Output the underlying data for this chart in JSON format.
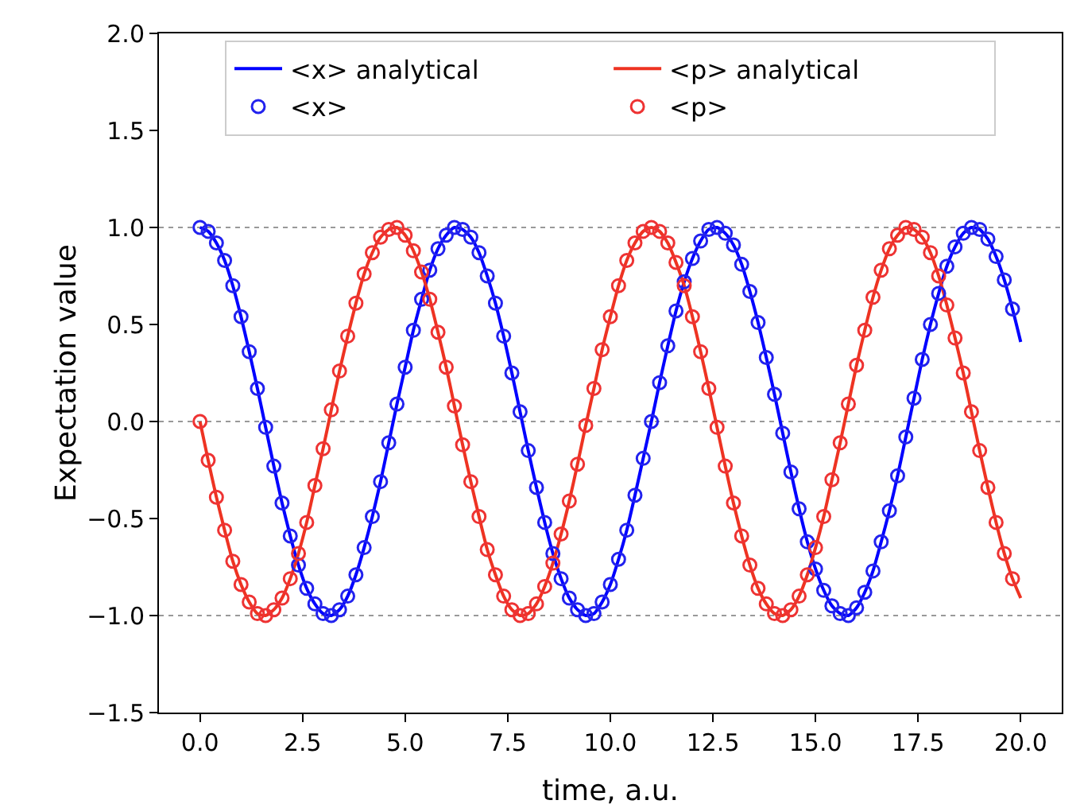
{
  "chart_data": {
    "type": "line",
    "xlabel": "time, a.u.",
    "ylabel": "Expectation value",
    "x": [
      0,
      0.2,
      0.4,
      0.6,
      0.8,
      1.0,
      1.2,
      1.4,
      1.6,
      1.8,
      2.0,
      2.2,
      2.4,
      2.6,
      2.8,
      3.0,
      3.2,
      3.4,
      3.6,
      3.8,
      4.0,
      4.2,
      4.4,
      4.6,
      4.8,
      5.0,
      5.2,
      5.4,
      5.6,
      5.8,
      6.0,
      6.2,
      6.4,
      6.6,
      6.8,
      7.0,
      7.2,
      7.4,
      7.6,
      7.8,
      8.0,
      8.2,
      8.4,
      8.6,
      8.8,
      9.0,
      9.2,
      9.4,
      9.6,
      9.8,
      10.0,
      10.2,
      10.4,
      10.6,
      10.8,
      11.0,
      11.2,
      11.4,
      11.6,
      11.8,
      12.0,
      12.2,
      12.4,
      12.6,
      12.8,
      13.0,
      13.2,
      13.4,
      13.6,
      13.8,
      14.0,
      14.2,
      14.4,
      14.6,
      14.8,
      15.0,
      15.2,
      15.4,
      15.6,
      15.8,
      16.0,
      16.2,
      16.4,
      16.6,
      16.8,
      17.0,
      17.2,
      17.4,
      17.6,
      17.8,
      18.0,
      18.2,
      18.4,
      18.6,
      18.8,
      19.0,
      19.2,
      19.4,
      19.6,
      19.8,
      20.0
    ],
    "series": [
      {
        "name": "<x> analytical",
        "color": "#0000ff",
        "marker": "none",
        "values": [
          1.0,
          0.98,
          0.92,
          0.83,
          0.7,
          0.54,
          0.36,
          0.17,
          -0.03,
          -0.23,
          -0.42,
          -0.59,
          -0.74,
          -0.86,
          -0.94,
          -0.99,
          -1.0,
          -0.97,
          -0.9,
          -0.79,
          -0.65,
          -0.49,
          -0.31,
          -0.11,
          0.09,
          0.28,
          0.47,
          0.63,
          0.78,
          0.89,
          0.96,
          1.0,
          0.99,
          0.95,
          0.87,
          0.75,
          0.61,
          0.44,
          0.25,
          0.05,
          -0.15,
          -0.34,
          -0.52,
          -0.68,
          -0.81,
          -0.91,
          -0.97,
          -1.0,
          -0.99,
          -0.93,
          -0.84,
          -0.71,
          -0.56,
          -0.38,
          -0.19,
          0.0,
          0.2,
          0.39,
          0.57,
          0.72,
          0.84,
          0.93,
          0.99,
          1.0,
          0.97,
          0.91,
          0.81,
          0.67,
          0.51,
          0.33,
          0.14,
          -0.06,
          -0.26,
          -0.45,
          -0.62,
          -0.76,
          -0.87,
          -0.95,
          -0.99,
          -1.0,
          -0.96,
          -0.88,
          -0.77,
          -0.62,
          -0.46,
          -0.28,
          -0.08,
          0.12,
          0.32,
          0.5,
          0.66,
          0.8,
          0.9,
          0.97,
          1.0,
          0.99,
          0.94,
          0.85,
          0.73,
          0.58,
          0.41
        ]
      },
      {
        "name": "<p> analytical",
        "color": "#ee3322",
        "marker": "none",
        "values": [
          0.0,
          -0.2,
          -0.39,
          -0.56,
          -0.72,
          -0.84,
          -0.93,
          -0.99,
          -1.0,
          -0.97,
          -0.91,
          -0.81,
          -0.68,
          -0.52,
          -0.33,
          -0.14,
          0.06,
          0.26,
          0.44,
          0.61,
          0.76,
          0.87,
          0.95,
          0.99,
          1.0,
          0.96,
          0.88,
          0.77,
          0.63,
          0.46,
          0.28,
          0.08,
          -0.12,
          -0.31,
          -0.49,
          -0.66,
          -0.79,
          -0.9,
          -0.97,
          -1.0,
          -0.99,
          -0.94,
          -0.85,
          -0.73,
          -0.58,
          -0.41,
          -0.22,
          -0.02,
          0.17,
          0.37,
          0.54,
          0.7,
          0.83,
          0.92,
          0.98,
          1.0,
          0.98,
          0.92,
          0.82,
          0.7,
          0.54,
          0.36,
          0.17,
          -0.03,
          -0.23,
          -0.42,
          -0.59,
          -0.74,
          -0.86,
          -0.94,
          -0.99,
          -1.0,
          -0.97,
          -0.9,
          -0.79,
          -0.65,
          -0.49,
          -0.3,
          -0.11,
          0.09,
          0.29,
          0.47,
          0.64,
          0.78,
          0.89,
          0.96,
          1.0,
          0.99,
          0.95,
          0.87,
          0.75,
          0.6,
          0.43,
          0.25,
          0.05,
          -0.15,
          -0.34,
          -0.52,
          -0.68,
          -0.81,
          -0.91
        ]
      },
      {
        "name": "<x>",
        "color": "#2222ee",
        "type": "scatter",
        "marker": "circle",
        "values": [
          1.0,
          0.98,
          0.92,
          0.83,
          0.7,
          0.54,
          0.36,
          0.17,
          -0.03,
          -0.23,
          -0.42,
          -0.59,
          -0.74,
          -0.86,
          -0.94,
          -0.99,
          -1.0,
          -0.97,
          -0.9,
          -0.79,
          -0.65,
          -0.49,
          -0.31,
          -0.11,
          0.09,
          0.28,
          0.47,
          0.63,
          0.78,
          0.89,
          0.96,
          1.0,
          0.99,
          0.95,
          0.87,
          0.75,
          0.61,
          0.44,
          0.25,
          0.05,
          -0.15,
          -0.34,
          -0.52,
          -0.68,
          -0.81,
          -0.91,
          -0.97,
          -1.0,
          -0.99,
          -0.93,
          -0.84,
          -0.71,
          -0.56,
          -0.38,
          -0.19,
          0.0,
          0.2,
          0.39,
          0.57,
          0.72,
          0.84,
          0.93,
          0.99,
          1.0,
          0.97,
          0.91,
          0.81,
          0.67,
          0.51,
          0.33,
          0.14,
          -0.06,
          -0.26,
          -0.45,
          -0.62,
          -0.76,
          -0.87,
          -0.95,
          -0.99,
          -1.0,
          -0.96,
          -0.88,
          -0.77,
          -0.62,
          -0.46,
          -0.28,
          -0.08,
          0.12,
          0.32,
          0.5,
          0.66,
          0.8,
          0.9,
          0.97,
          1.0,
          0.99,
          0.94,
          0.85,
          0.73,
          0.58,
          null
        ]
      },
      {
        "name": "<p>",
        "color": "#ee3333",
        "type": "scatter",
        "marker": "circle",
        "values": [
          0.0,
          -0.2,
          -0.39,
          -0.56,
          -0.72,
          -0.84,
          -0.93,
          -0.99,
          -1.0,
          -0.97,
          -0.91,
          -0.81,
          -0.68,
          -0.52,
          -0.33,
          -0.14,
          0.06,
          0.26,
          0.44,
          0.61,
          0.76,
          0.87,
          0.95,
          0.99,
          1.0,
          0.96,
          0.88,
          0.77,
          0.63,
          0.46,
          0.28,
          0.08,
          -0.12,
          -0.31,
          -0.49,
          -0.66,
          -0.79,
          -0.9,
          -0.97,
          -1.0,
          -0.99,
          -0.94,
          -0.85,
          -0.73,
          -0.58,
          -0.41,
          -0.22,
          -0.02,
          0.17,
          0.37,
          0.54,
          0.7,
          0.83,
          0.92,
          0.98,
          1.0,
          0.98,
          0.92,
          0.82,
          0.7,
          0.54,
          0.36,
          0.17,
          -0.03,
          -0.23,
          -0.42,
          -0.59,
          -0.74,
          -0.86,
          -0.94,
          -0.99,
          -1.0,
          -0.97,
          -0.9,
          -0.79,
          -0.65,
          -0.49,
          -0.3,
          -0.11,
          0.09,
          0.29,
          0.47,
          0.64,
          0.78,
          0.89,
          0.96,
          1.0,
          0.99,
          0.95,
          0.87,
          0.75,
          0.6,
          0.43,
          0.25,
          0.05,
          -0.15,
          -0.34,
          -0.52,
          -0.68,
          -0.81,
          null
        ]
      }
    ],
    "xlim": [
      -1,
      21
    ],
    "xticks": [
      {
        "value": 0,
        "label": "0.0"
      },
      {
        "value": 2.5,
        "label": "2.5"
      },
      {
        "value": 5,
        "label": "5.0"
      },
      {
        "value": 7.5,
        "label": "7.5"
      },
      {
        "value": 10,
        "label": "10.0"
      },
      {
        "value": 12.5,
        "label": "12.5"
      },
      {
        "value": 15,
        "label": "15.0"
      },
      {
        "value": 17.5,
        "label": "17.5"
      },
      {
        "value": 20,
        "label": "20.0"
      }
    ],
    "ylim": [
      -1.5,
      2.0
    ],
    "yticks": [
      {
        "value": -1.5,
        "label": "−1.5"
      },
      {
        "value": -1,
        "label": "−1.0"
      },
      {
        "value": -0.5,
        "label": "−0.5"
      },
      {
        "value": 0,
        "label": "0.0"
      },
      {
        "value": 0.5,
        "label": "0.5"
      },
      {
        "value": 1,
        "label": "1.0"
      },
      {
        "value": 1.5,
        "label": "1.5"
      },
      {
        "value": 2,
        "label": "2.0"
      }
    ],
    "ref_lines": [
      {
        "axis": "y",
        "value": -1,
        "color": "#999999",
        "line_style": "dotted"
      },
      {
        "axis": "y",
        "value": 0,
        "color": "#999999",
        "line_style": "dotted"
      },
      {
        "axis": "y",
        "value": 1,
        "color": "#999999",
        "line_style": "dotted"
      }
    ],
    "grid": false,
    "legend": "top"
  }
}
